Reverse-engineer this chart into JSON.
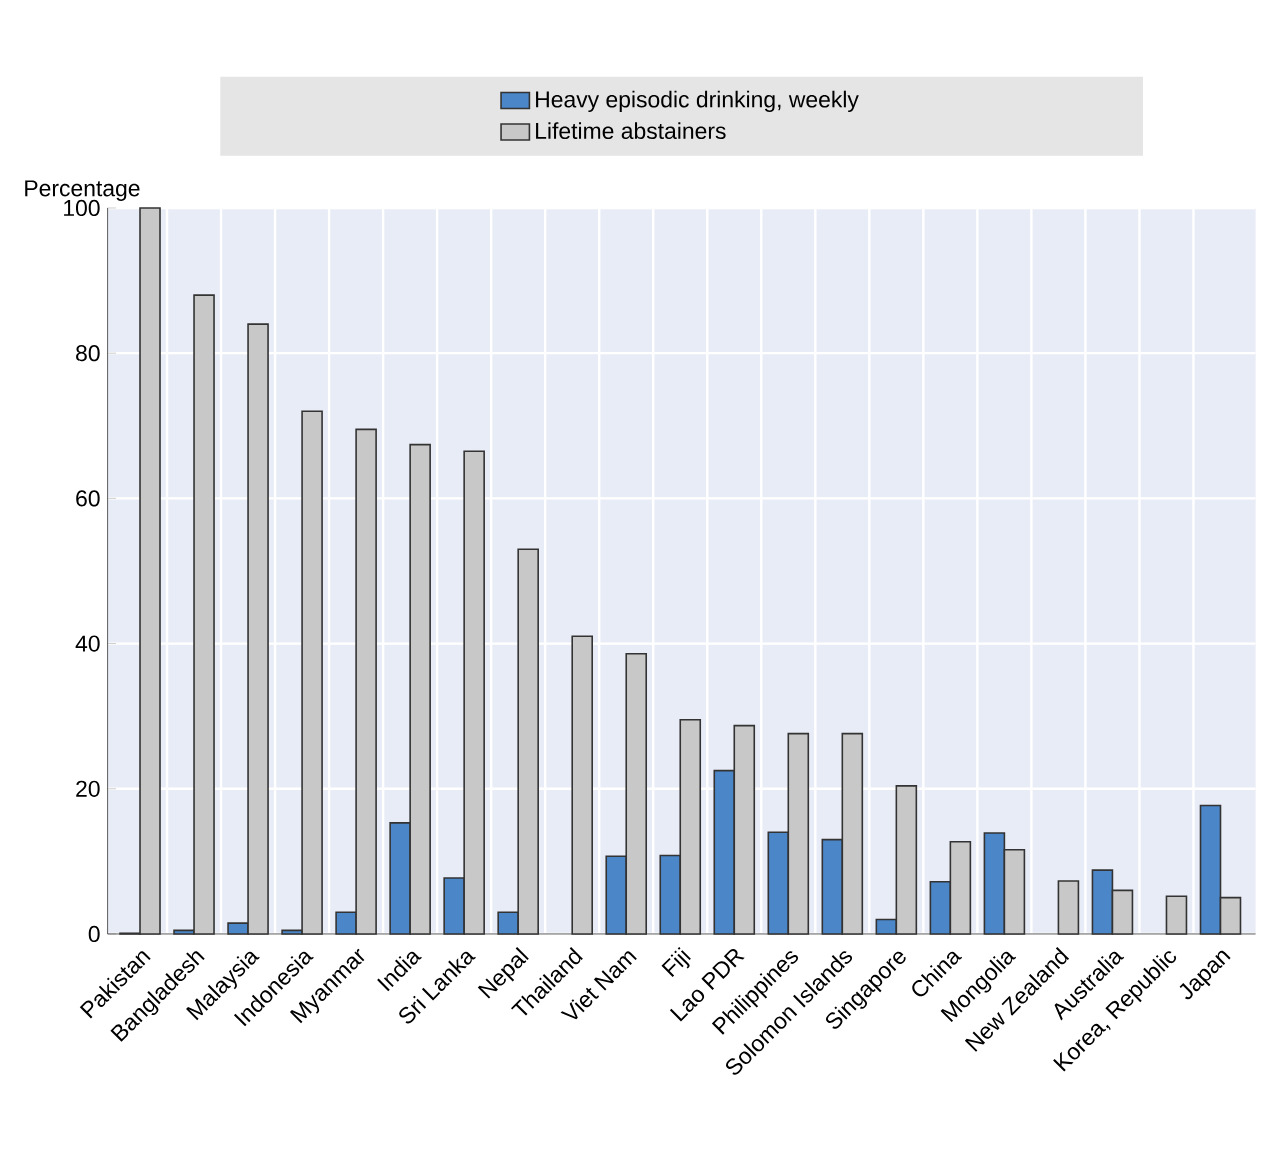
{
  "chart_data": {
    "type": "bar",
    "ylabel": "Percentage",
    "categories": [
      "Pakistan",
      "Bangladesh",
      "Malaysia",
      "Indonesia",
      "Myanmar",
      "India",
      "Sri Lanka",
      "Nepal",
      "Thailand",
      "Viet Nam",
      "Fiji",
      "Lao PDR",
      "Philippines",
      "Solomon Islands",
      "Singapore",
      "China",
      "Mongolia",
      "New Zealand",
      "Australia",
      "Korea, Republic",
      "Japan"
    ],
    "series": [
      {
        "name": "Heavy episodic drinking, weekly",
        "color": "#4a86c8",
        "values": [
          0.1,
          0.5,
          1.5,
          0.5,
          3,
          15.3,
          7.7,
          3,
          null,
          10.7,
          10.8,
          22.5,
          14,
          13,
          2,
          7.2,
          13.9,
          null,
          8.8,
          null,
          17.7
        ]
      },
      {
        "name": "Lifetime abstainers",
        "color": "#c8c8c8",
        "values": [
          100,
          88,
          84,
          72,
          69.5,
          67.4,
          66.5,
          53,
          41,
          38.6,
          29.5,
          28.7,
          27.6,
          27.6,
          20.4,
          12.7,
          11.6,
          7.3,
          6,
          5.2,
          5
        ]
      }
    ],
    "ylim": [
      0,
      100
    ],
    "yticks": [
      0,
      20,
      40,
      60,
      80,
      100
    ],
    "grid": true,
    "legend": "top"
  }
}
